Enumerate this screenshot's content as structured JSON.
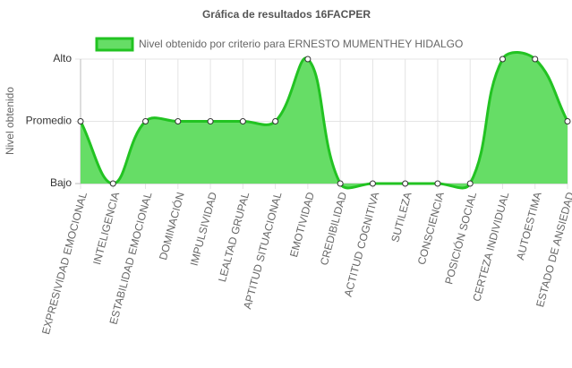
{
  "chart_data": {
    "type": "line",
    "title": "Gráfica de resultados 16FACPER",
    "y_label": "Nivel obtenido",
    "categories": [
      "EXPRESIVIDAD EMOCIONAL",
      "INTELIGENCIA",
      "ESTABILIDAD EMOCIONAL",
      "DOMINACIÓN",
      "IMPULSIVIDAD",
      "LEALTAD GRUPAL",
      "APTITUD SITUACIONAL",
      "EMOTIVIDAD",
      "CREDIBILIDAD",
      "ACTITUD COGNITIVA",
      "SUTILEZA",
      "CONSCIENCIA",
      "POSICIÓN SOCIAL",
      "CERTEZA INDIVIDUAL",
      "AUTOESTIMA",
      "ESTADO DE ANSIEDAD"
    ],
    "series": [
      {
        "name": "Nivel obtenido por criterio para ERNESTO MUMENTHEY HIDALGO",
        "color": "#22c322",
        "fill": "#66dd66",
        "values": [
          2,
          1,
          2,
          2,
          2,
          2,
          2,
          3,
          1,
          1,
          1,
          1,
          1,
          3,
          3,
          2
        ]
      }
    ],
    "ylim": [
      1,
      3
    ],
    "yticks": [
      {
        "value": 1,
        "label": "Bajo"
      },
      {
        "value": 2,
        "label": "Promedio"
      },
      {
        "value": 3,
        "label": "Alto"
      }
    ],
    "grid": true,
    "legend": "top"
  }
}
